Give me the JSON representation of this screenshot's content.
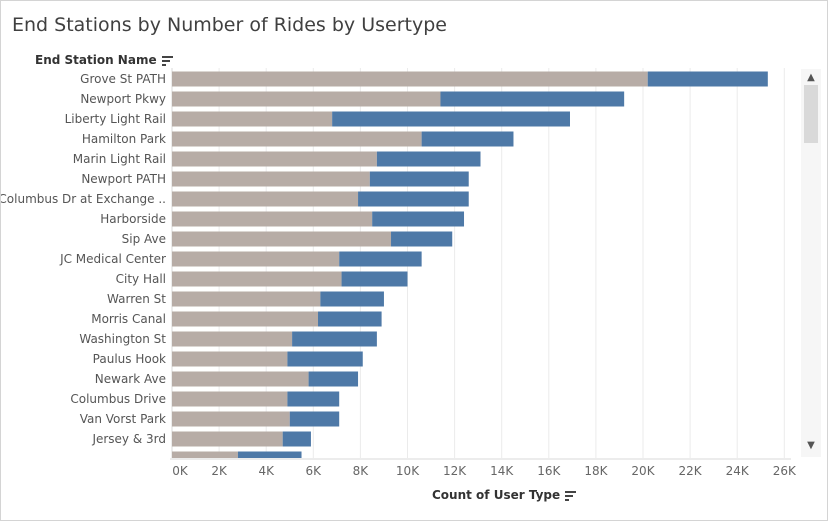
{
  "title": "End Stations by Number of Rides by Usertype",
  "row_header": "End Station Name",
  "colors": {
    "segment_1": "#b7aca6",
    "segment_2": "#4e79a7",
    "grid": "#ebebeb",
    "label": "#555555"
  },
  "icons": [
    "sort-icon",
    "scroll-up-icon",
    "scroll-down-icon"
  ],
  "chart_data": {
    "type": "bar",
    "orientation": "horizontal",
    "stacked": true,
    "xlabel": "Count of User Type",
    "xlim": [
      0,
      26000
    ],
    "xticks": [
      "0K",
      "2K",
      "4K",
      "6K",
      "8K",
      "10K",
      "12K",
      "14K",
      "16K",
      "18K",
      "20K",
      "22K",
      "24K",
      "26K"
    ],
    "grid": true,
    "categories": [
      "Grove St PATH",
      "Newport Pkwy",
      "Liberty Light Rail",
      "Hamilton Park",
      "Marin Light Rail",
      "Newport PATH",
      "Columbus Dr at Exchange ..",
      "Harborside",
      "Sip Ave",
      "JC Medical Center",
      "City Hall",
      "Warren St",
      "Morris Canal",
      "Washington St",
      "Paulus Hook",
      "Newark Ave",
      "Columbus Drive",
      "Van Vorst Park",
      "Jersey & 3rd",
      ""
    ],
    "series": [
      {
        "values": [
          20200,
          11400,
          6800,
          10600,
          8700,
          8400,
          7900,
          8500,
          9300,
          7100,
          7200,
          6300,
          6200,
          5100,
          4900,
          5800,
          4900,
          5000,
          4700,
          2800
        ]
      },
      {
        "values": [
          5100,
          7800,
          10100,
          3900,
          4400,
          4200,
          4700,
          3900,
          2600,
          3500,
          2800,
          2700,
          2700,
          3600,
          3200,
          2100,
          2200,
          2100,
          1200,
          2700
        ]
      }
    ]
  }
}
